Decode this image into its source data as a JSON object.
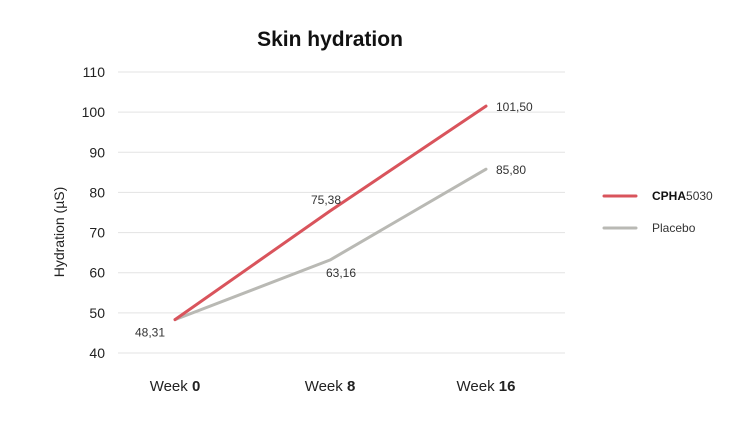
{
  "chart_data": {
    "type": "line",
    "title": "Skin hydration",
    "ylabel": "Hydration (µS)",
    "xlabel": "",
    "categories": [
      {
        "prefix": "Week ",
        "bold": "0"
      },
      {
        "prefix": "Week ",
        "bold": "8"
      },
      {
        "prefix": "Week ",
        "bold": "16"
      }
    ],
    "ylim": [
      40,
      110
    ],
    "yticks": [
      "40",
      "50",
      "60",
      "70",
      "80",
      "90",
      "100",
      "110"
    ],
    "grid": true,
    "legend_position": "right",
    "series": [
      {
        "name_bold": "CPHA",
        "name_rest": "5030",
        "color": "#d9545c",
        "values": [
          48.31,
          75.38,
          101.5
        ],
        "labels": [
          "",
          "75,38",
          "101,50"
        ]
      },
      {
        "name_bold": "",
        "name_rest": "Placebo",
        "color": "#b9b9b4",
        "values": [
          48.31,
          63.16,
          85.8
        ],
        "labels": [
          "48,31",
          "63,16",
          "85,80"
        ]
      }
    ],
    "colors": {
      "grid": "#e3e3e3",
      "text": "#222222",
      "label": "#333333"
    }
  }
}
